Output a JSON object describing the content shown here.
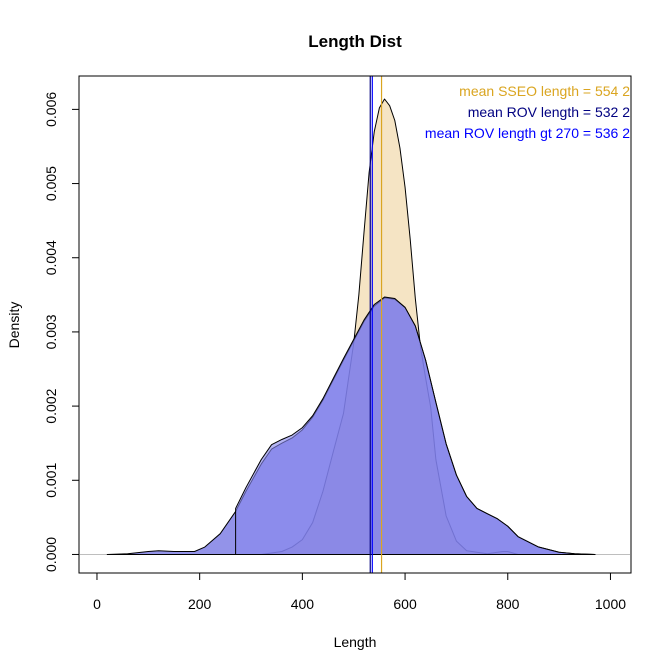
{
  "chart_data": {
    "type": "area",
    "title": "Length Dist",
    "xlabel": "Length",
    "ylabel": "Density",
    "xlim": [
      -35,
      1040
    ],
    "ylim": [
      -0.00025,
      0.00645
    ],
    "x_ticks": [
      0,
      200,
      400,
      600,
      800,
      1000
    ],
    "x_tick_labels": [
      "0",
      "200",
      "400",
      "600",
      "800",
      "1000"
    ],
    "y_ticks": [
      0.0,
      0.001,
      0.002,
      0.003,
      0.004,
      0.005,
      0.006
    ],
    "y_tick_labels": [
      "0.000",
      "0.001",
      "0.002",
      "0.003",
      "0.004",
      "0.005",
      "0.006"
    ],
    "grid": false,
    "baseline_color": "#bebebe",
    "series": [
      {
        "fill": "#f5e4c4",
        "stroke": "#000000",
        "x": [
          320,
          360,
          380,
          400,
          420,
          440,
          460,
          480,
          500,
          510,
          520,
          530,
          540,
          550,
          560,
          570,
          580,
          590,
          600,
          610,
          620,
          630,
          640,
          650,
          660,
          680,
          700,
          720,
          760,
          790,
          800,
          810,
          820
        ],
        "y": [
          0.0,
          4e-05,
          0.0001,
          0.0002,
          0.00043,
          0.00085,
          0.00138,
          0.0019,
          0.00285,
          0.0035,
          0.00434,
          0.00515,
          0.0057,
          0.00602,
          0.00614,
          0.00605,
          0.00585,
          0.00548,
          0.00495,
          0.00425,
          0.00345,
          0.0028,
          0.00238,
          0.00198,
          0.00128,
          0.00052,
          0.00018,
          5e-05,
          1e-05,
          4e-05,
          4e-05,
          2e-05,
          0.0
        ]
      },
      {
        "fill": "#6a6ae0",
        "fill_opacity": 0.72,
        "stroke": "#000000",
        "x": [
          20,
          60,
          100,
          120,
          150,
          190,
          210,
          240,
          270,
          290,
          320,
          340,
          360,
          380,
          400,
          420,
          440,
          460,
          480,
          500,
          520,
          540,
          560,
          580,
          600,
          620,
          640,
          660,
          680,
          700,
          720,
          740,
          760,
          780,
          800,
          820,
          860,
          900,
          930,
          970
        ],
        "y": [
          0.0,
          1e-05,
          4e-05,
          5e-05,
          4e-05,
          4e-05,
          0.0001,
          0.00028,
          0.00058,
          0.00085,
          0.00122,
          0.00142,
          0.0015,
          0.00157,
          0.00168,
          0.00185,
          0.00208,
          0.00235,
          0.00262,
          0.00288,
          0.00314,
          0.00335,
          0.00346,
          0.00344,
          0.00333,
          0.00308,
          0.00262,
          0.00205,
          0.00149,
          0.00107,
          0.00078,
          0.00062,
          0.00055,
          0.00048,
          0.00038,
          0.00024,
          0.0001,
          3e-05,
          1e-05,
          0.0
        ]
      },
      {
        "fill": "#8888ee",
        "fill_opacity": 0.62,
        "stroke": "#000000",
        "x": [
          270,
          290,
          320,
          340,
          360,
          380,
          400,
          420,
          440,
          460,
          480,
          500,
          520,
          540,
          560,
          580,
          600,
          620,
          640,
          660,
          680,
          700,
          720,
          740,
          760,
          780,
          800,
          820,
          860,
          900,
          930,
          970
        ],
        "y": [
          0.00062,
          0.0009,
          0.00128,
          0.00148,
          0.00155,
          0.00161,
          0.00171,
          0.00187,
          0.0021,
          0.00237,
          0.00264,
          0.0029,
          0.00316,
          0.00337,
          0.00347,
          0.00345,
          0.00333,
          0.00308,
          0.00262,
          0.00205,
          0.00149,
          0.00107,
          0.00078,
          0.00062,
          0.00055,
          0.00048,
          0.00038,
          0.00024,
          0.0001,
          3e-05,
          1e-05,
          0.0
        ]
      }
    ],
    "vlines": [
      {
        "x": 532.2,
        "color": "#000080"
      },
      {
        "x": 536.2,
        "color": "#0000ff"
      },
      {
        "x": 554.2,
        "color": "#daa520"
      }
    ],
    "legend_position": "top-right",
    "legend": [
      {
        "text": "mean SSEO length =  554 2",
        "color": "#daa520"
      },
      {
        "text": "mean ROV length =  532 2",
        "color": "#000080"
      },
      {
        "text": "mean ROV length gt 270 =  536 2",
        "color": "#0000ff"
      }
    ]
  }
}
